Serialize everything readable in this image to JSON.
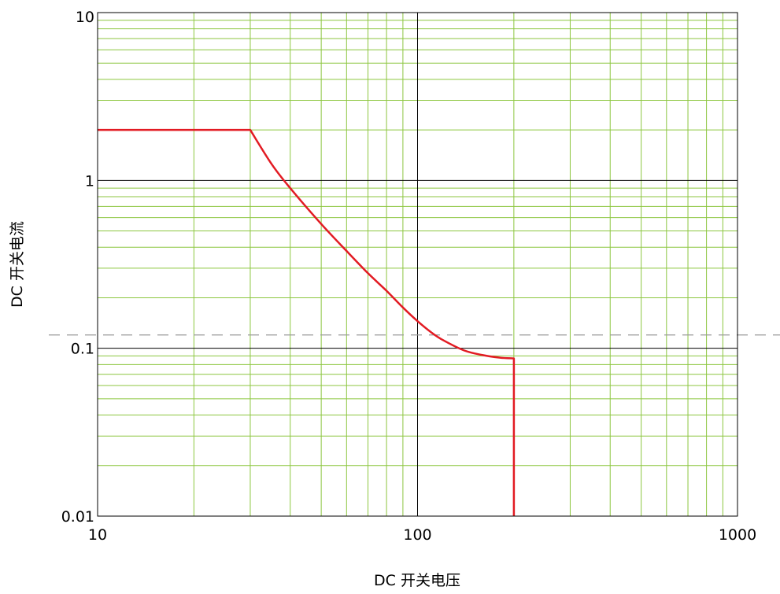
{
  "chart_data": {
    "type": "line",
    "xscale": "log",
    "yscale": "log",
    "xlim": [
      10,
      1000
    ],
    "ylim": [
      0.01,
      10
    ],
    "xlabel": "DC 开关电压",
    "ylabel": "DC 开关电流",
    "xticks": [
      10,
      100,
      1000
    ],
    "xtick_labels": [
      "10",
      "100",
      "1000"
    ],
    "yticks": [
      0.01,
      0.1,
      1,
      10
    ],
    "ytick_labels": [
      "0.01",
      "0.1",
      "1",
      "10"
    ],
    "grid": true,
    "minor_grid": true,
    "reference_line": {
      "y": 0.12,
      "style": "dashed"
    },
    "series": [
      {
        "x": [
          10,
          30,
          35,
          40,
          50,
          60,
          70,
          80,
          90,
          100,
          110,
          120,
          140,
          160,
          180,
          200,
          200
        ],
        "y": [
          2.0,
          2.0,
          1.25,
          0.9,
          0.55,
          0.38,
          0.28,
          0.22,
          0.175,
          0.145,
          0.125,
          0.112,
          0.097,
          0.091,
          0.088,
          0.087,
          0.01
        ]
      }
    ]
  },
  "colors": {
    "series_line": "#e21b23",
    "minor_grid": "#8cc63f",
    "major_grid": "#000000",
    "reference_line": "#999999"
  }
}
